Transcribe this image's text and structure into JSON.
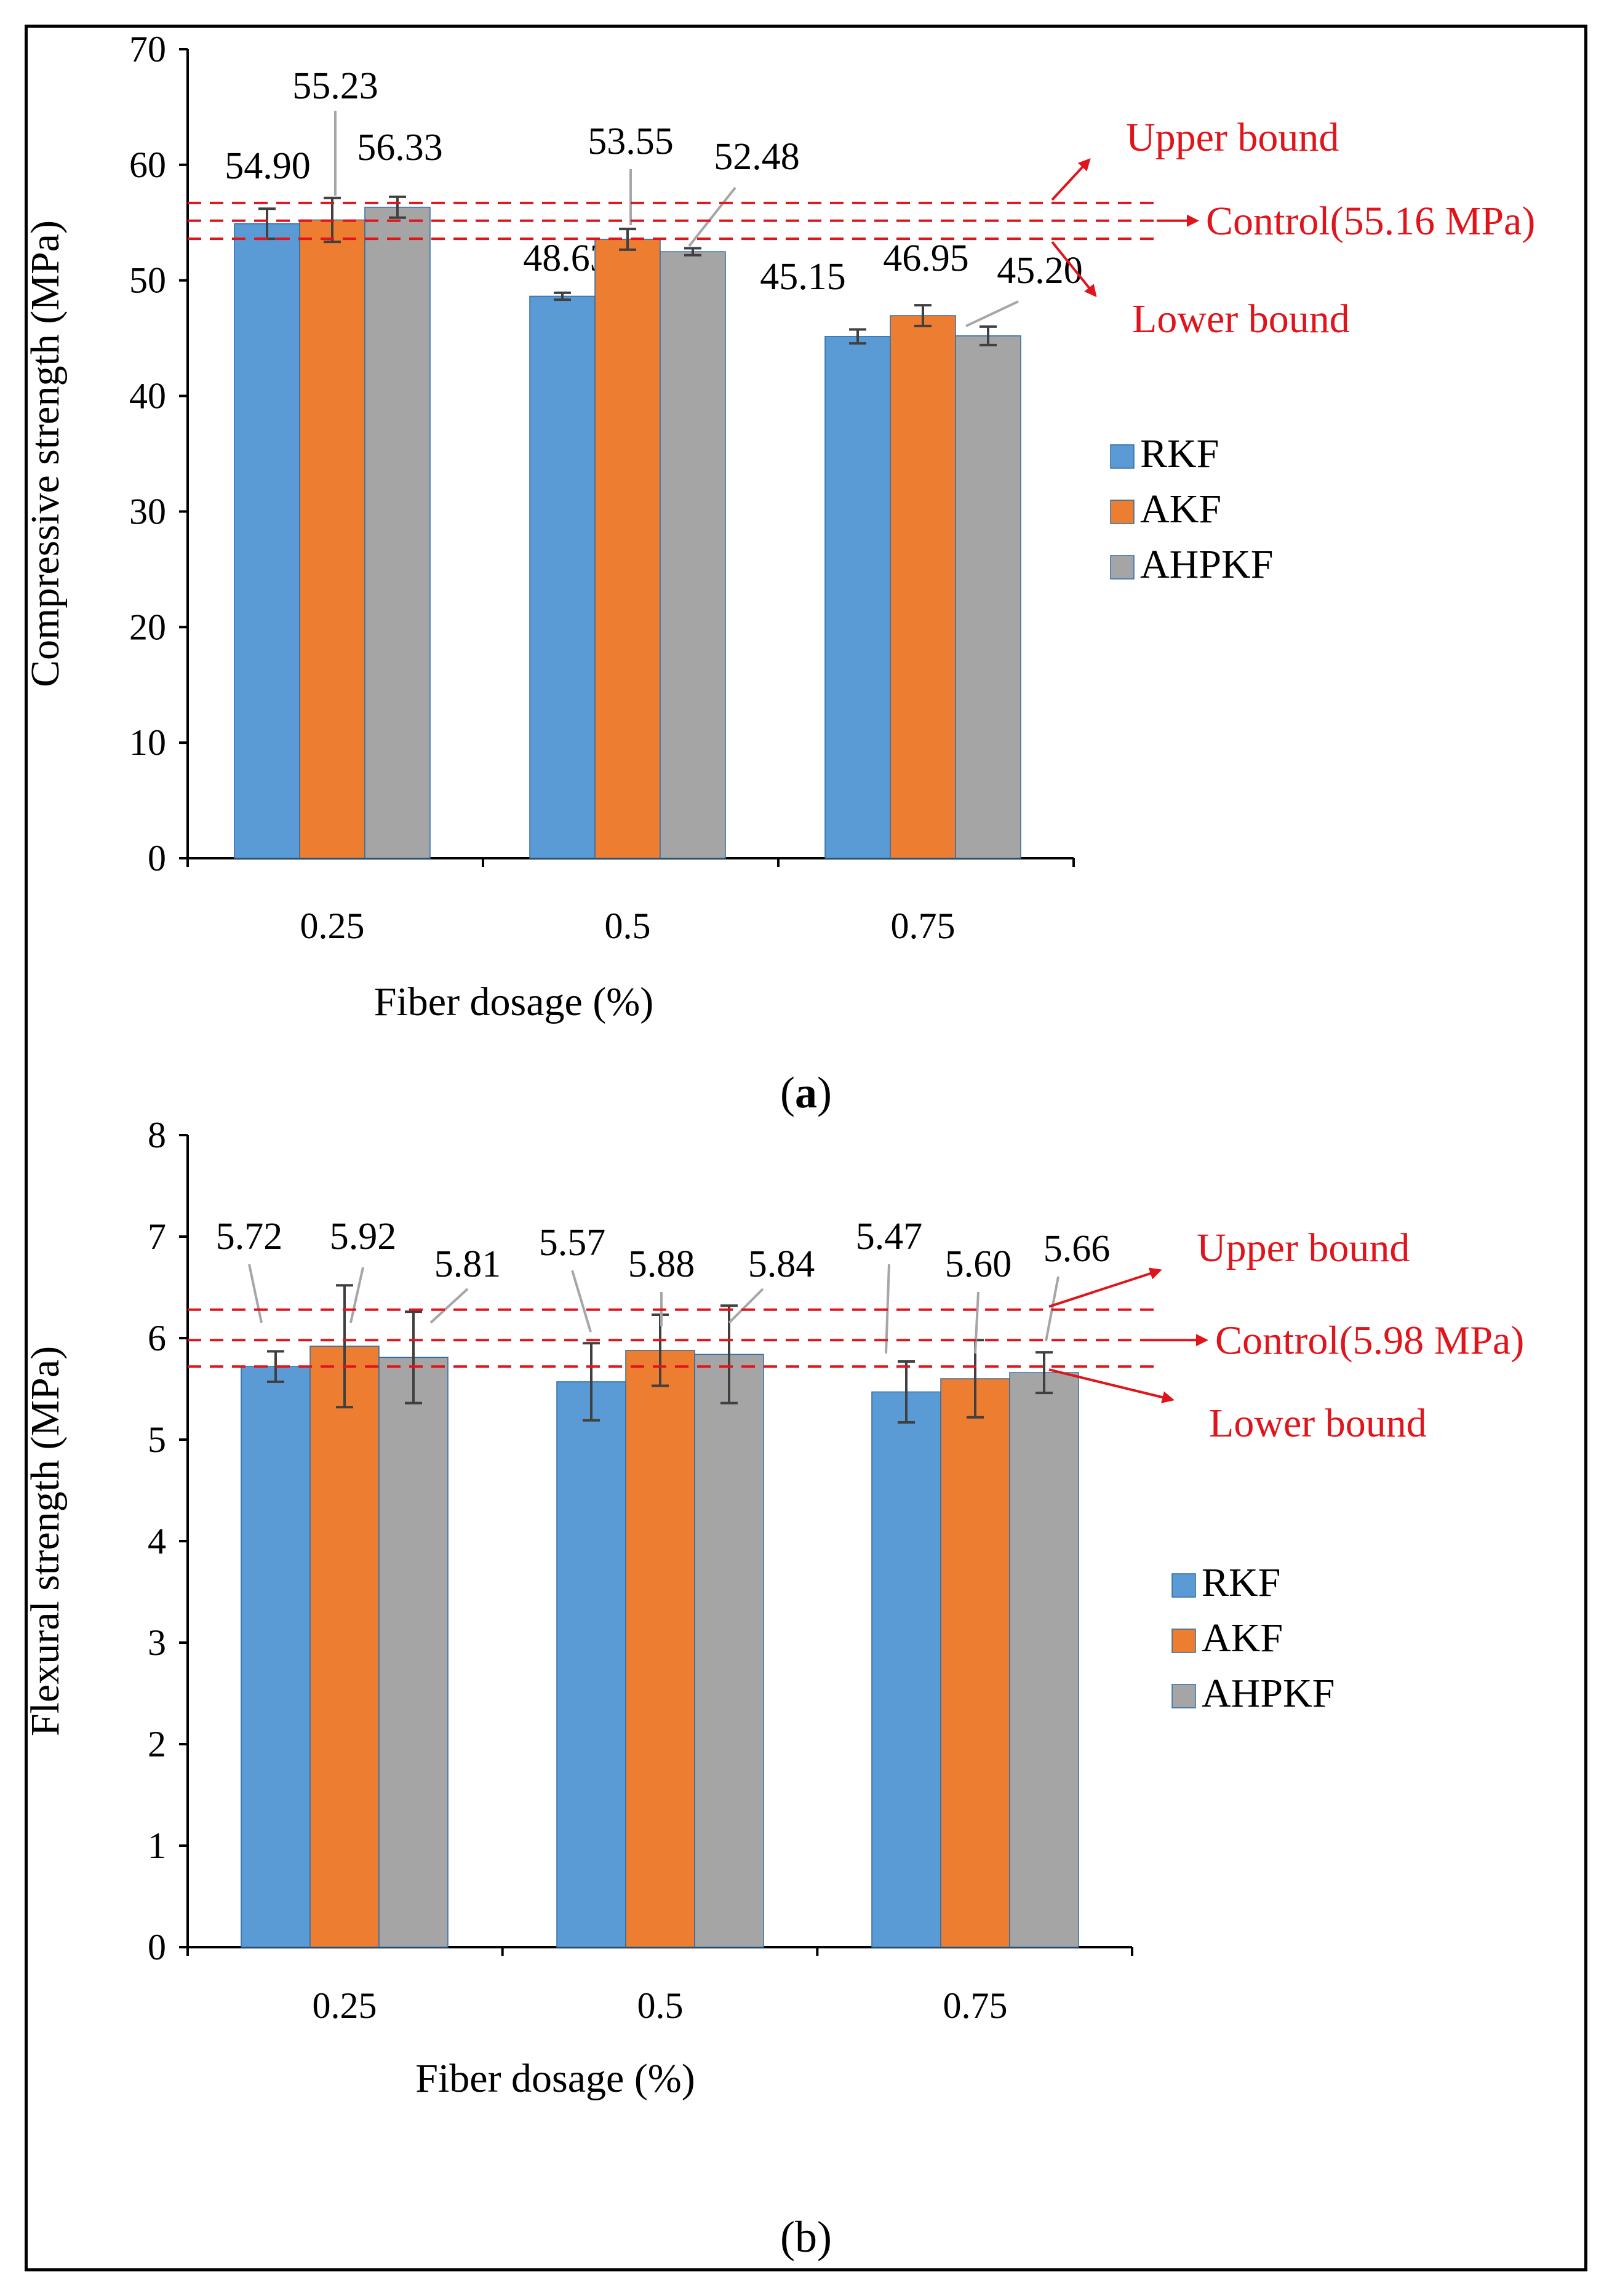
{
  "colors": {
    "RKF": "#5b9bd5",
    "AKF": "#ed7d31",
    "AHPKF": "#a5a5a5",
    "reference": "#e0141b",
    "leader": "#a6a6a6",
    "errorbar": "#404040"
  },
  "chart_data": [
    {
      "id": "a",
      "type": "bar",
      "caption_letter": "a",
      "caption_open": "(",
      "caption_close": ")",
      "categories": [
        "0.25",
        "0.5",
        "0.75"
      ],
      "series": [
        {
          "name": "RKF",
          "values": [
            54.9,
            48.63,
            45.15
          ],
          "labels": [
            "54.90",
            "48.63",
            "45.15"
          ],
          "errors": [
            1.3,
            0.3,
            0.6
          ]
        },
        {
          "name": "AKF",
          "values": [
            55.23,
            53.55,
            46.95
          ],
          "labels": [
            "55.23",
            "53.55",
            "46.95"
          ],
          "errors": [
            1.9,
            0.9,
            0.9
          ]
        },
        {
          "name": "AHPKF",
          "values": [
            56.33,
            52.48,
            45.2
          ],
          "labels": [
            "56.33",
            "52.48",
            "45.20"
          ],
          "errors": [
            0.9,
            0.3,
            0.8
          ]
        }
      ],
      "xlabel": "Fiber dosage (%)",
      "ylabel": "Compressive strength (MPa)",
      "ylim": [
        0,
        70
      ],
      "yticks": [
        "0",
        "10",
        "20",
        "30",
        "40",
        "50",
        "60",
        "70"
      ],
      "reference_lines": {
        "upper": {
          "value": 56.7,
          "label": "Upper bound"
        },
        "control": {
          "value": 55.16,
          "label": "Control(55.16 MPa)"
        },
        "lower": {
          "value": 53.6,
          "label": "Lower bound"
        }
      },
      "legend": [
        "RKF",
        "AKF",
        "AHPKF"
      ]
    },
    {
      "id": "b",
      "type": "bar",
      "caption_letter": "b",
      "caption_open": "(",
      "caption_close": ")",
      "categories": [
        "0.25",
        "0.5",
        "0.75"
      ],
      "series": [
        {
          "name": "RKF",
          "values": [
            5.72,
            5.57,
            5.47
          ],
          "labels": [
            "5.72",
            "5.57",
            "5.47"
          ],
          "errors": [
            0.15,
            0.38,
            0.3
          ]
        },
        {
          "name": "AKF",
          "values": [
            5.92,
            5.88,
            5.6
          ],
          "labels": [
            "5.92",
            "5.88",
            "5.60"
          ],
          "errors": [
            0.6,
            0.35,
            0.38
          ]
        },
        {
          "name": "AHPKF",
          "values": [
            5.81,
            5.84,
            5.66
          ],
          "labels": [
            "5.81",
            "5.84",
            "5.66"
          ],
          "errors": [
            0.45,
            0.48,
            0.2
          ]
        }
      ],
      "xlabel": "Fiber dosage (%)",
      "ylabel": "Flexural strength (MPa)",
      "ylim": [
        0,
        8
      ],
      "yticks": [
        "0",
        "1",
        "2",
        "3",
        "4",
        "5",
        "6",
        "7",
        "8"
      ],
      "reference_lines": {
        "upper": {
          "value": 6.28,
          "label": "Upper bound"
        },
        "control": {
          "value": 5.98,
          "label": "Control(5.98 MPa)"
        },
        "lower": {
          "value": 5.72,
          "label": "Lower bound"
        }
      },
      "legend": [
        "RKF",
        "AKF",
        "AHPKF"
      ]
    }
  ]
}
